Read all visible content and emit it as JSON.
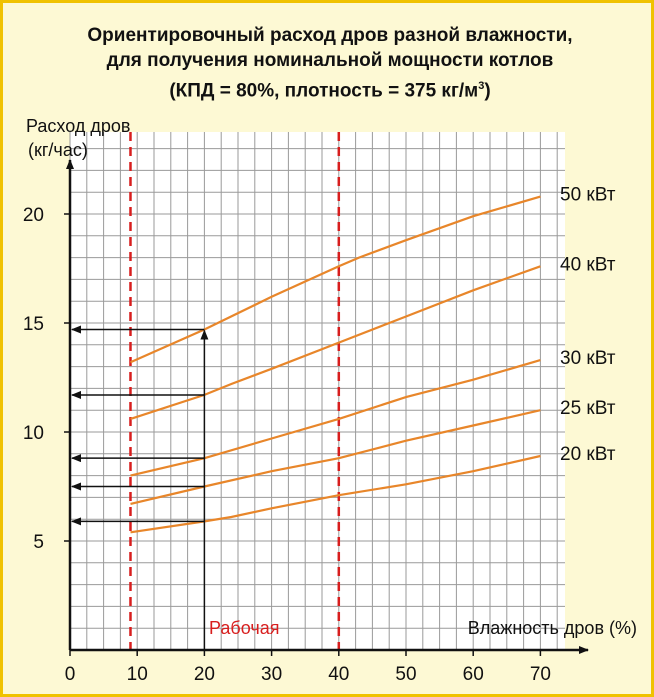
{
  "chart_data": {
    "type": "line",
    "title": "Ориентировочный расход дров разной влажности,",
    "subtitle": "для получения номинальной мощности котлов",
    "subtitle2_main": "(КПД = 80%, плотность = 375 кг/м",
    "subtitle2_sup": "3",
    "subtitle2_end": ")",
    "ylabel_line1": "Расход дров",
    "ylabel_line2": "(кг/час)",
    "xlabel": "Влажность дров (%)",
    "working_zone_label": "Рабочая",
    "xlim": [
      0,
      75
    ],
    "ylim": [
      0,
      25
    ],
    "x_ticks": [
      0,
      10,
      20,
      30,
      40,
      50,
      60,
      70
    ],
    "y_ticks": [
      5,
      10,
      15,
      20
    ],
    "grid": true,
    "reference_lines_x": [
      9,
      40
    ],
    "marker_x": 20,
    "colors": {
      "series": "#e8862a",
      "reference": "#d81e1e",
      "grid": "#9a9a9a",
      "axis": "#111111"
    },
    "series": [
      {
        "name": "50 кВт",
        "x": [
          9,
          20,
          30,
          40,
          43,
          50,
          60,
          70
        ],
        "y": [
          13.2,
          14.7,
          16.2,
          17.6,
          18.0,
          18.8,
          19.9,
          20.8
        ]
      },
      {
        "name": "40 кВт",
        "x": [
          9,
          20,
          24,
          30,
          40,
          50,
          60,
          70
        ],
        "y": [
          10.6,
          11.7,
          12.2,
          12.9,
          14.1,
          15.3,
          16.5,
          17.6
        ]
      },
      {
        "name": "30 кВт",
        "x": [
          9,
          20,
          30,
          40,
          50,
          60,
          70
        ],
        "y": [
          8.0,
          8.8,
          9.7,
          10.6,
          11.6,
          12.4,
          13.3
        ]
      },
      {
        "name": "25 кВт",
        "x": [
          9,
          20,
          30,
          40,
          50,
          60,
          70
        ],
        "y": [
          6.7,
          7.5,
          8.2,
          8.8,
          9.6,
          10.3,
          11.0
        ]
      },
      {
        "name": "20 кВт",
        "x": [
          9,
          20,
          24,
          30,
          40,
          50,
          60,
          70
        ],
        "y": [
          5.4,
          5.9,
          6.1,
          6.5,
          7.1,
          7.6,
          8.2,
          8.9
        ]
      }
    ],
    "marker_y_values": [
      14.7,
      11.7,
      8.8,
      7.5,
      5.9
    ]
  }
}
